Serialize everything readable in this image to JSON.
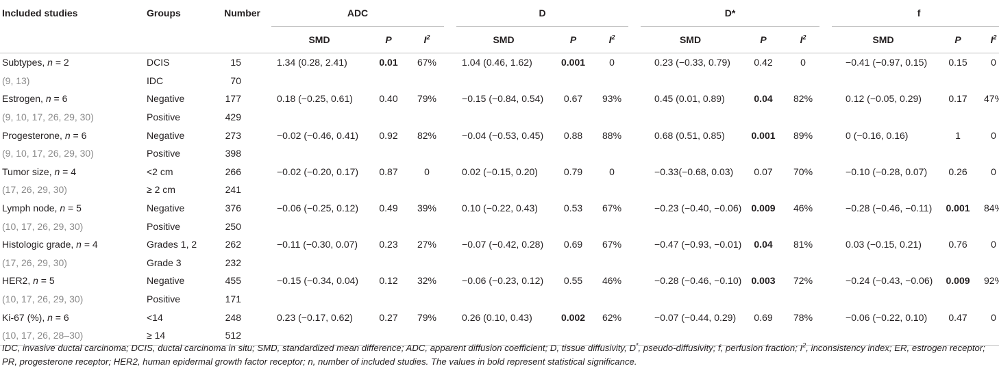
{
  "headers": {
    "included_studies": "Included studies",
    "groups": "Groups",
    "number": "Number",
    "measures": [
      "ADC",
      "D",
      "D*",
      "f"
    ],
    "smd": "SMD",
    "p": "P",
    "i2_letter": "I",
    "i2_sup": "2"
  },
  "rows": [
    {
      "study": "Subtypes, n = 2",
      "cites": "(9, 13)",
      "g1": "DCIS",
      "n1": "15",
      "g2": "IDC",
      "n2": "70",
      "adc": [
        "1.34 (0.28, 2.41)",
        "0.01",
        "67%"
      ],
      "d": [
        "1.04 (0.46, 1.62)",
        "0.001",
        "0"
      ],
      "dstar": [
        "0.23 (−0.33, 0.79)",
        "0.42",
        "0"
      ],
      "f": [
        "−0.41 (−0.97, 0.15)",
        "0.15",
        "0"
      ]
    },
    {
      "study": "Estrogen, n = 6",
      "cites": "(9, 10, 17, 26, 29, 30)",
      "g1": "Negative",
      "n1": "177",
      "g2": "Positive",
      "n2": "429",
      "adc": [
        "0.18 (−0.25, 0.61)",
        "0.40",
        "79%"
      ],
      "d": [
        "−0.15 (−0.84, 0.54)",
        "0.67",
        "93%"
      ],
      "dstar": [
        "0.45 (0.01, 0.89)",
        "0.04",
        "82%"
      ],
      "f": [
        "0.12 (−0.05, 0.29)",
        "0.17",
        "47%"
      ]
    },
    {
      "study": "Progesterone, n = 6",
      "cites": "(9, 10, 17, 26, 29, 30)",
      "g1": "Negative",
      "n1": "273",
      "g2": "Positive",
      "n2": "398",
      "adc": [
        "−0.02 (−0.46, 0.41)",
        "0.92",
        "82%"
      ],
      "d": [
        "−0.04 (−0.53, 0.45)",
        "0.88",
        "88%"
      ],
      "dstar": [
        "0.68 (0.51, 0.85)",
        "0.001",
        "89%"
      ],
      "f": [
        "0 (−0.16, 0.16)",
        "1",
        "0"
      ]
    },
    {
      "study": "Tumor size, n = 4",
      "cites": "(17, 26, 29, 30)",
      "g1": "<2 cm",
      "n1": "266",
      "g2": "≥ 2 cm",
      "n2": "241",
      "adc": [
        "−0.02 (−0.20, 0.17)",
        "0.87",
        "0"
      ],
      "d": [
        "0.02 (−0.15, 0.20)",
        "0.79",
        "0"
      ],
      "dstar": [
        "−0.33(−0.68, 0.03)",
        "0.07",
        "70%"
      ],
      "f": [
        "−0.10 (−0.28, 0.07)",
        "0.26",
        "0"
      ]
    },
    {
      "study": "Lymph node, n = 5",
      "cites": "(10, 17, 26, 29, 30)",
      "g1": "Negative",
      "n1": "376",
      "g2": "Positive",
      "n2": "250",
      "adc": [
        "−0.06 (−0.25, 0.12)",
        "0.49",
        "39%"
      ],
      "d": [
        "0.10 (−0.22, 0.43)",
        "0.53",
        "67%"
      ],
      "dstar": [
        "−0.23 (−0.40, −0.06)",
        "0.009",
        "46%"
      ],
      "f": [
        "−0.28 (−0.46, −0.11)",
        "0.001",
        "84%"
      ]
    },
    {
      "study": "Histologic grade, n = 4",
      "cites": "(17, 26, 29, 30)",
      "g1": "Grades 1, 2",
      "n1": "262",
      "g2": "Grade 3",
      "n2": "232",
      "adc": [
        "−0.11 (−0.30, 0.07)",
        "0.23",
        "27%"
      ],
      "d": [
        "−0.07 (−0.42, 0.28)",
        "0.69",
        "67%"
      ],
      "dstar": [
        "−0.47 (−0.93, −0.01)",
        "0.04",
        "81%"
      ],
      "f": [
        "0.03 (−0.15, 0.21)",
        "0.76",
        "0"
      ]
    },
    {
      "study": "HER2, n = 5",
      "cites": "(10, 17, 26, 29, 30)",
      "g1": "Negative",
      "n1": "455",
      "g2": "Positive",
      "n2": "171",
      "adc": [
        "−0.15 (−0.34, 0.04)",
        "0.12",
        "32%"
      ],
      "d": [
        "−0.06 (−0.23, 0.12)",
        "0.55",
        "46%"
      ],
      "dstar": [
        "−0.28 (−0.46, −0.10)",
        "0.003",
        "72%"
      ],
      "f": [
        "−0.24 (−0.43, −0.06)",
        "0.009",
        "92%"
      ]
    },
    {
      "study": "Ki-67 (%), n = 6",
      "cites": "(10, 17, 26, 28–30)",
      "g1": "<14",
      "n1": "248",
      "g2": "≥ 14",
      "n2": "512",
      "adc": [
        "0.23 (−0.17, 0.62)",
        "0.27",
        "79%"
      ],
      "d": [
        "0.26 (0.10, 0.43)",
        "0.002",
        "62%"
      ],
      "dstar": [
        "−0.07 (−0.44, 0.29)",
        "0.69",
        "78%"
      ],
      "f": [
        "−0.06 (−0.22, 0.10)",
        "0.47",
        "0"
      ]
    }
  ],
  "bold_p": {
    "0": [
      "adc",
      "d"
    ],
    "1": [
      "dstar"
    ],
    "2": [
      "dstar"
    ],
    "4": [
      "dstar",
      "f"
    ],
    "5": [
      "dstar"
    ],
    "6": [
      "dstar",
      "f"
    ],
    "7": [
      "d"
    ]
  },
  "footnote": {
    "part1": "IDC, invasive ductal carcinoma; DCIS, ductal carcinoma in situ; SMD, standardized mean difference; ADC, apparent diffusion coefficient; D, tissue diffusivity, D",
    "sup1": "*",
    "part2": ", pseudo-diffusivity; f, perfusion fraction; I",
    "sup2": "2",
    "part3": ", inconsistency index; ER, estrogen receptor; PR, progesterone receptor; HER2, human epidermal growth factor receptor; n, number of included studies. The values in bold represent statistical significance."
  }
}
